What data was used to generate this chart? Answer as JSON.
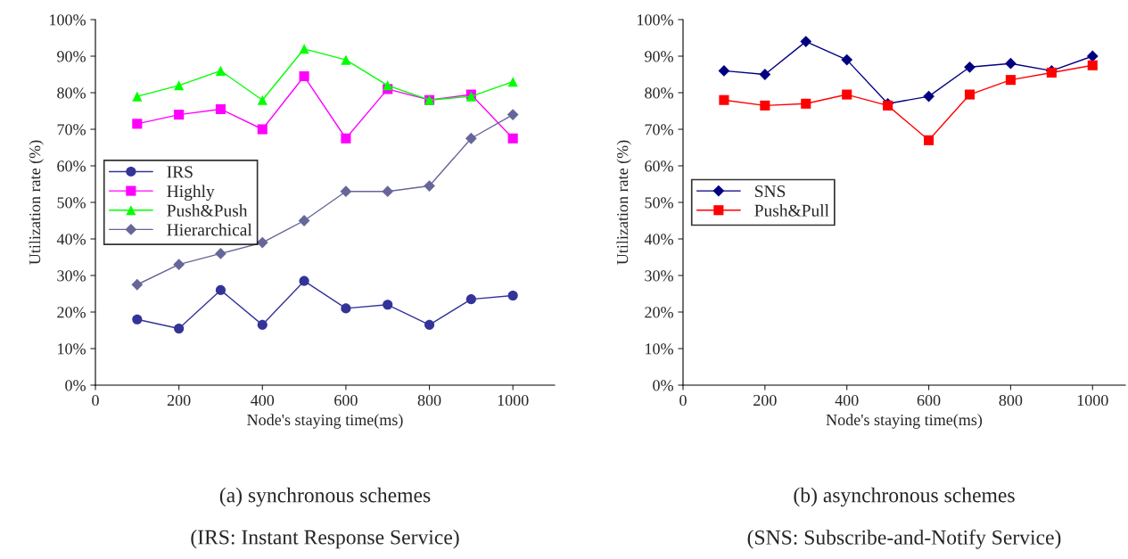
{
  "chart_data": [
    {
      "type": "line",
      "xlabel": "Node's staying time(ms)",
      "ylabel": "Utilization rate (%)",
      "x": [
        100,
        200,
        300,
        400,
        500,
        600,
        700,
        800,
        900,
        1000
      ],
      "series": [
        {
          "name": "IRS",
          "color": "#333399",
          "marker": "circle",
          "values": [
            18,
            15.5,
            26,
            16.5,
            28.5,
            21,
            22,
            16.5,
            23.5,
            24.5
          ]
        },
        {
          "name": "Highly",
          "color": "#ff00ff",
          "marker": "square",
          "values": [
            71.5,
            74,
            75.5,
            70,
            84.5,
            67.5,
            81,
            78,
            79.5,
            67.5
          ]
        },
        {
          "name": "Push&Push",
          "color": "#00ff00",
          "marker": "triangle",
          "values": [
            79,
            82,
            86,
            78,
            92,
            89,
            82,
            78,
            79,
            83
          ]
        },
        {
          "name": "Hierarchical",
          "color": "#666699",
          "marker": "diamond",
          "values": [
            27.5,
            33,
            36,
            39,
            45,
            53,
            53,
            54.5,
            67.5,
            74
          ]
        }
      ],
      "xlim": [
        0,
        1100
      ],
      "xticks": [
        0,
        200,
        400,
        600,
        800,
        1000
      ],
      "ylim": [
        0,
        100
      ],
      "yticks": [
        {
          "value": 0,
          "label": "0%"
        },
        {
          "value": 10,
          "label": "10%"
        },
        {
          "value": 20,
          "label": "20%"
        },
        {
          "value": 30,
          "label": "30%"
        },
        {
          "value": 40,
          "label": "40%"
        },
        {
          "value": 50,
          "label": "50%"
        },
        {
          "value": 60,
          "label": "60%"
        },
        {
          "value": 70,
          "label": "70%"
        },
        {
          "value": 80,
          "label": "80%"
        },
        {
          "value": 90,
          "label": "90%"
        },
        {
          "value": 100,
          "label": "100%"
        }
      ],
      "grid": false,
      "legend": "left",
      "annotations": [
        "(a) synchronous schemes",
        "(IRS: Instant Response Service)"
      ]
    },
    {
      "type": "line",
      "xlabel": "Node's staying time(ms)",
      "ylabel": "Utilization rate (%)",
      "x": [
        100,
        200,
        300,
        400,
        500,
        600,
        700,
        800,
        900,
        1000
      ],
      "series": [
        {
          "name": "SNS",
          "color": "#000080",
          "marker": "diamond",
          "values": [
            86,
            85,
            94,
            89,
            77,
            79,
            87,
            88,
            86,
            90
          ]
        },
        {
          "name": "Push&Pull",
          "color": "#ff0000",
          "marker": "square",
          "values": [
            78,
            76.5,
            77,
            79.5,
            76.5,
            67,
            79.5,
            83.5,
            85.5,
            87.5
          ]
        }
      ],
      "xlim": [
        0,
        1080
      ],
      "xticks": [
        0,
        200,
        400,
        600,
        800,
        1000
      ],
      "ylim": [
        0,
        100
      ],
      "yticks": [
        {
          "value": 0,
          "label": "0%"
        },
        {
          "value": 10,
          "label": "10%"
        },
        {
          "value": 20,
          "label": "20%"
        },
        {
          "value": 30,
          "label": "30%"
        },
        {
          "value": 40,
          "label": "40%"
        },
        {
          "value": 50,
          "label": "50%"
        },
        {
          "value": 60,
          "label": "60%"
        },
        {
          "value": 70,
          "label": "70%"
        },
        {
          "value": 80,
          "label": "80%"
        },
        {
          "value": 90,
          "label": "90%"
        },
        {
          "value": 100,
          "label": "100%"
        }
      ],
      "grid": false,
      "legend": "left",
      "annotations": [
        "(b) asynchronous schemes",
        "(SNS: Subscribe-and-Notify Service)"
      ]
    }
  ]
}
